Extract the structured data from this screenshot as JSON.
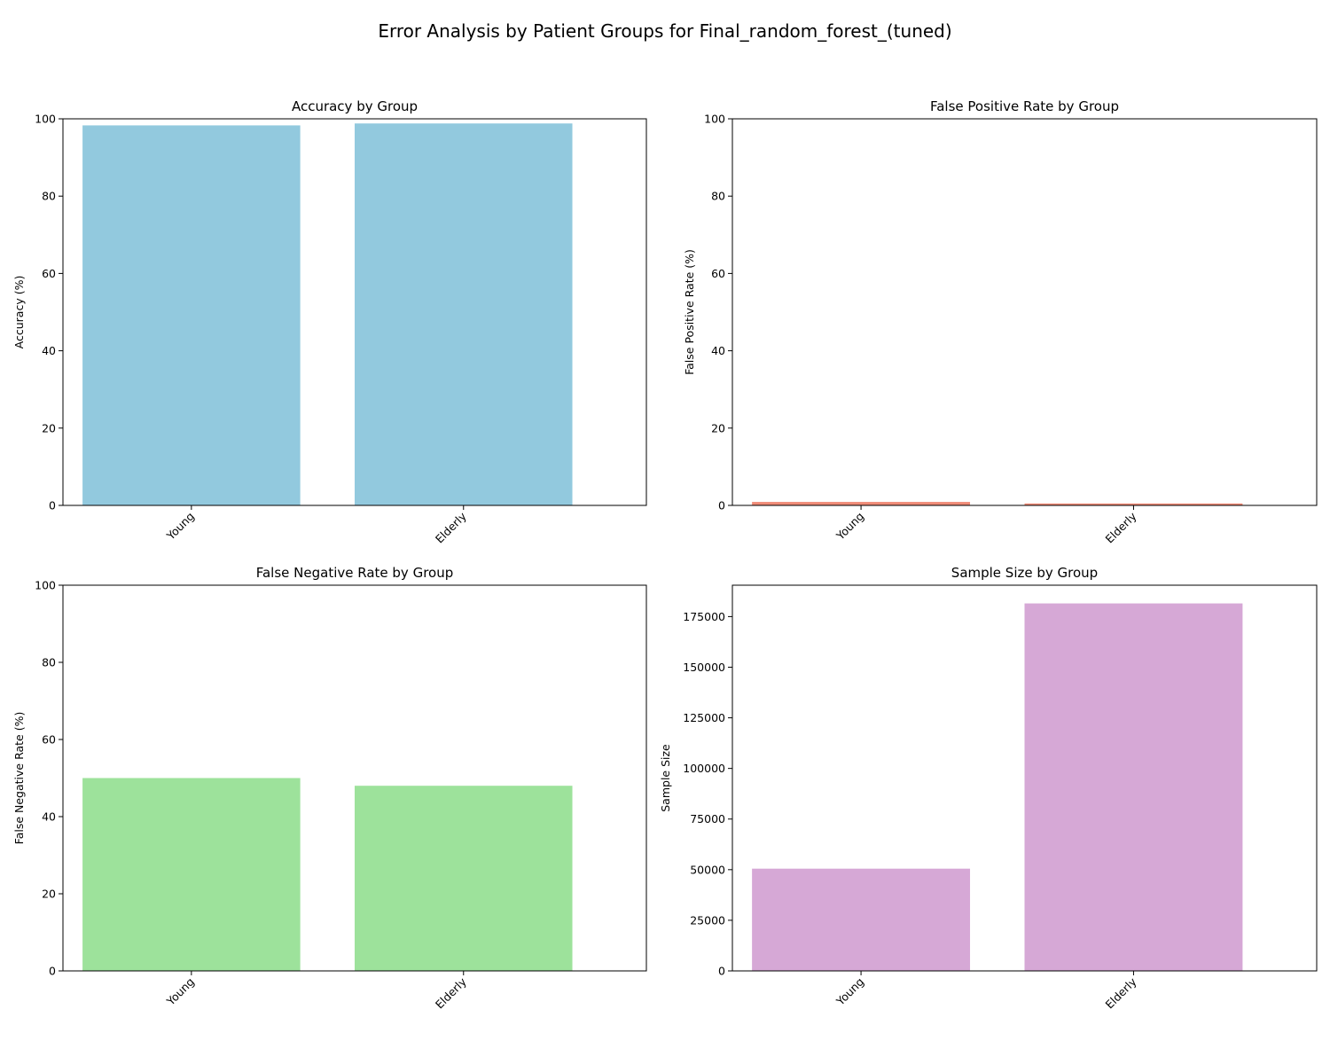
{
  "figure": {
    "title": "Error Analysis by Patient Groups for Final_random_forest_(tuned)"
  },
  "chart_data": [
    {
      "type": "bar",
      "title": "Accuracy by Group",
      "xlabel": "",
      "ylabel": "Accuracy (%)",
      "categories": [
        "Young",
        "Elderly"
      ],
      "values": [
        98.3,
        98.8
      ],
      "ylim": [
        0,
        100
      ],
      "yticks": [
        0,
        20,
        40,
        60,
        80,
        100
      ],
      "color": "#92c9de",
      "grid": false
    },
    {
      "type": "bar",
      "title": "False Positive Rate by Group",
      "xlabel": "",
      "ylabel": "False Positive Rate (%)",
      "categories": [
        "Young",
        "Elderly"
      ],
      "values": [
        0.9,
        0.5
      ],
      "ylim": [
        0,
        100
      ],
      "yticks": [
        0,
        20,
        40,
        60,
        80,
        100
      ],
      "color": "#f08b77",
      "grid": false
    },
    {
      "type": "bar",
      "title": "False Negative Rate by Group",
      "xlabel": "",
      "ylabel": "False Negative Rate (%)",
      "categories": [
        "Young",
        "Elderly"
      ],
      "values": [
        50.0,
        48.0
      ],
      "ylim": [
        0,
        100
      ],
      "yticks": [
        0,
        20,
        40,
        60,
        80,
        100
      ],
      "color": "#9de29b",
      "grid": false
    },
    {
      "type": "bar",
      "title": "Sample Size by Group",
      "xlabel": "",
      "ylabel": "Sample Size",
      "categories": [
        "Young",
        "Elderly"
      ],
      "values": [
        50500,
        181500
      ],
      "ylim": [
        0,
        190500
      ],
      "yticks": [
        0,
        25000,
        50000,
        75000,
        100000,
        125000,
        150000,
        175000
      ],
      "color": "#d6a8d6",
      "grid": false
    }
  ]
}
